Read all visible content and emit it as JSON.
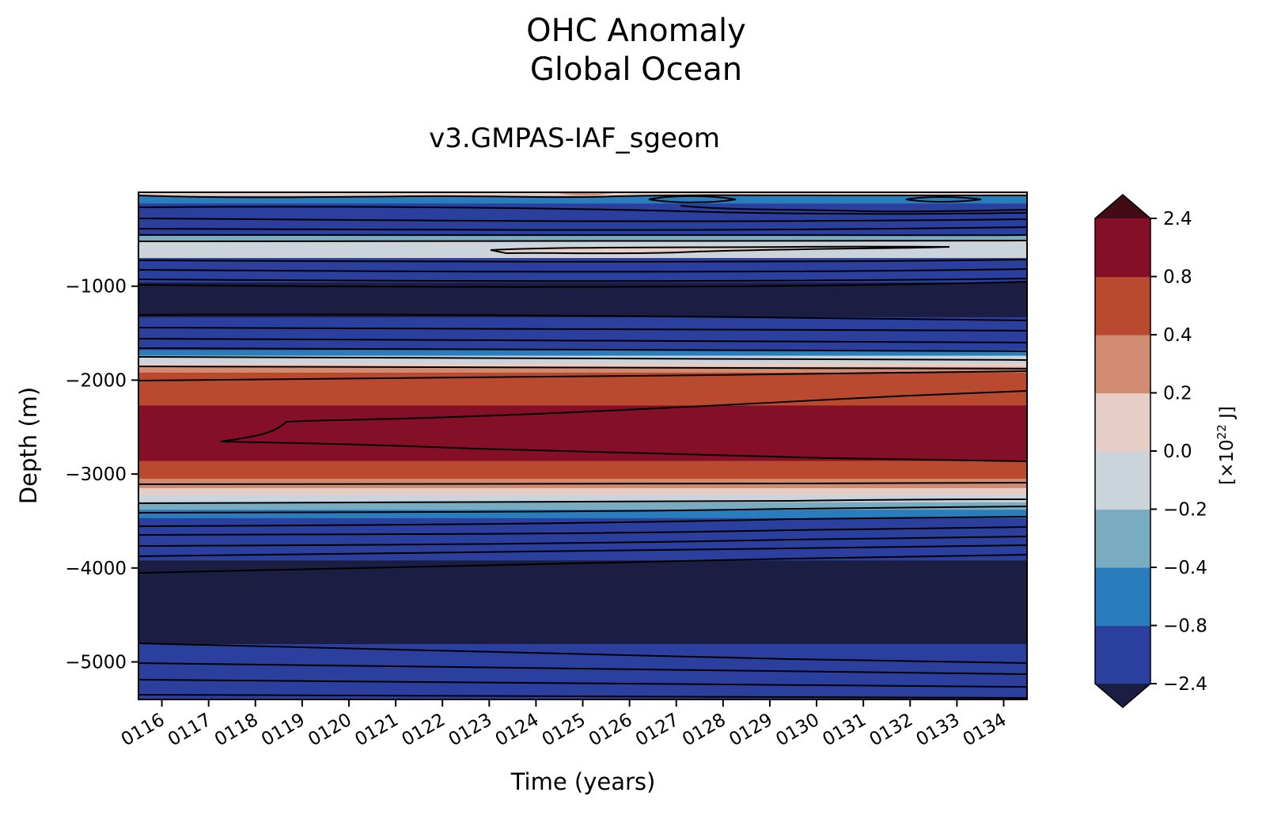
{
  "chart_data": {
    "type": "heatmap",
    "title": "OHC Anomaly",
    "subtitle": "Global Ocean",
    "panel_title": "v3.GMPAS-IAF_sgeom",
    "xlabel": "Time (years)",
    "ylabel": "Depth (m)",
    "x_ticks": [
      "0116",
      "0117",
      "0118",
      "0119",
      "0120",
      "0121",
      "0122",
      "0123",
      "0124",
      "0125",
      "0126",
      "0127",
      "0128",
      "0129",
      "0130",
      "0131",
      "0132",
      "0133",
      "0134"
    ],
    "x_range": [
      115.5,
      134.5
    ],
    "y_ticks": [
      -1000,
      -2000,
      -3000,
      -4000,
      -5000
    ],
    "y_tick_labels": [
      "−1000",
      "−2000",
      "−3000",
      "−4000",
      "−5000"
    ],
    "y_range": [
      -5400,
      0
    ],
    "colorbar": {
      "label": "[×10",
      "label_exp": "22",
      "label_unit": " J]",
      "levels": [
        -2.4,
        -0.8,
        -0.4,
        -0.2,
        0.0,
        0.2,
        0.4,
        0.8,
        2.4
      ],
      "tick_labels": [
        "−2.4",
        "−0.8",
        "−0.4",
        "−0.2",
        "0.0",
        "0.2",
        "0.4",
        "0.8",
        "2.4"
      ],
      "colors": [
        "#2a3f9e",
        "#2a7dbd",
        "#79abc1",
        "#cbd4db",
        "#e6cdc5",
        "#d08b70",
        "#b94a30",
        "#860f28"
      ],
      "under_color": "#1b1d42",
      "over_color": "#430b16",
      "extend": "both"
    },
    "bands": [
      {
        "top": 0,
        "bottom": -40,
        "value": 0.1
      },
      {
        "top": -40,
        "bottom": -120,
        "value": -0.5
      },
      {
        "top": -120,
        "bottom": -450,
        "value": -1.2
      },
      {
        "top": -450,
        "bottom": -520,
        "value": -0.3
      },
      {
        "top": -520,
        "bottom": -700,
        "value": -0.1
      },
      {
        "top": -700,
        "bottom": -960,
        "value": -1.5
      },
      {
        "top": -960,
        "bottom": -1330,
        "value": -3.0
      },
      {
        "top": -1330,
        "bottom": -1680,
        "value": -1.5
      },
      {
        "top": -1680,
        "bottom": -1740,
        "value": -0.6
      },
      {
        "top": -1740,
        "bottom": -1820,
        "value": -0.1
      },
      {
        "top": -1820,
        "bottom": -1860,
        "value": 0.1
      },
      {
        "top": -1860,
        "bottom": -1920,
        "value": 0.3
      },
      {
        "top": -1920,
        "bottom": -2270,
        "value": 0.6
      },
      {
        "top": -2270,
        "bottom": -2860,
        "value": 1.5
      },
      {
        "top": -2860,
        "bottom": -3050,
        "value": 0.6
      },
      {
        "top": -3050,
        "bottom": -3150,
        "value": 0.3
      },
      {
        "top": -3150,
        "bottom": -3220,
        "value": 0.1
      },
      {
        "top": -3220,
        "bottom": -3300,
        "value": -0.1
      },
      {
        "top": -3300,
        "bottom": -3380,
        "value": -0.3
      },
      {
        "top": -3380,
        "bottom": -3470,
        "value": -0.6
      },
      {
        "top": -3470,
        "bottom": -3920,
        "value": -1.5
      },
      {
        "top": -3920,
        "bottom": -4810,
        "value": -3.0
      },
      {
        "top": -4810,
        "bottom": -5400,
        "value": -1.5
      }
    ]
  }
}
